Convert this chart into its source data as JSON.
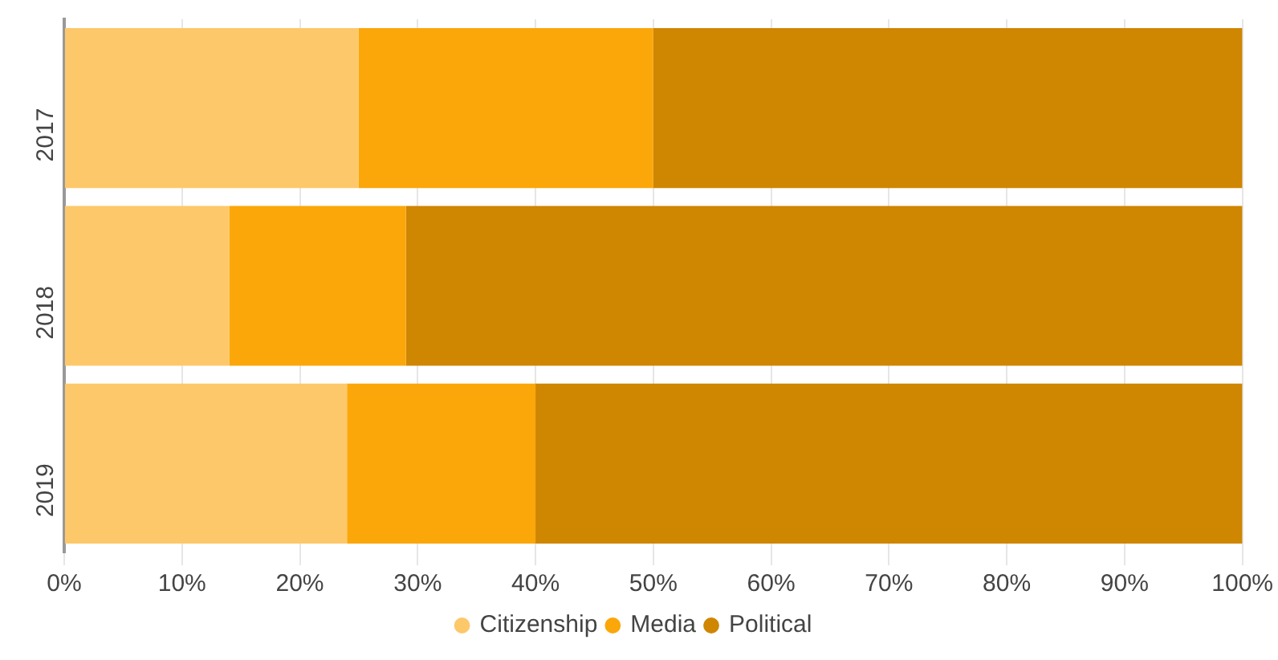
{
  "chart_data": {
    "type": "bar",
    "orientation": "horizontal",
    "stacked": true,
    "categories": [
      "2017",
      "2018",
      "2019"
    ],
    "series": [
      {
        "name": "Citizenship",
        "color": "#fdc86a",
        "values": [
          25,
          14,
          24
        ]
      },
      {
        "name": "Media",
        "color": "#fba709",
        "values": [
          25,
          15,
          16
        ]
      },
      {
        "name": "Political",
        "color": "#cf8601",
        "values": [
          50,
          71,
          60
        ]
      }
    ],
    "xlim": [
      0,
      100
    ],
    "xticks": [
      {
        "value": 0,
        "label": "0%"
      },
      {
        "value": 10,
        "label": "10%"
      },
      {
        "value": 20,
        "label": "20%"
      },
      {
        "value": 30,
        "label": "30%"
      },
      {
        "value": 40,
        "label": "40%"
      },
      {
        "value": 50,
        "label": "50%"
      },
      {
        "value": 60,
        "label": "60%"
      },
      {
        "value": 70,
        "label": "70%"
      },
      {
        "value": 80,
        "label": "80%"
      },
      {
        "value": 90,
        "label": "90%"
      },
      {
        "value": 100,
        "label": "100%"
      }
    ],
    "grid": "x",
    "legend": "bottom",
    "marker": "circle"
  }
}
